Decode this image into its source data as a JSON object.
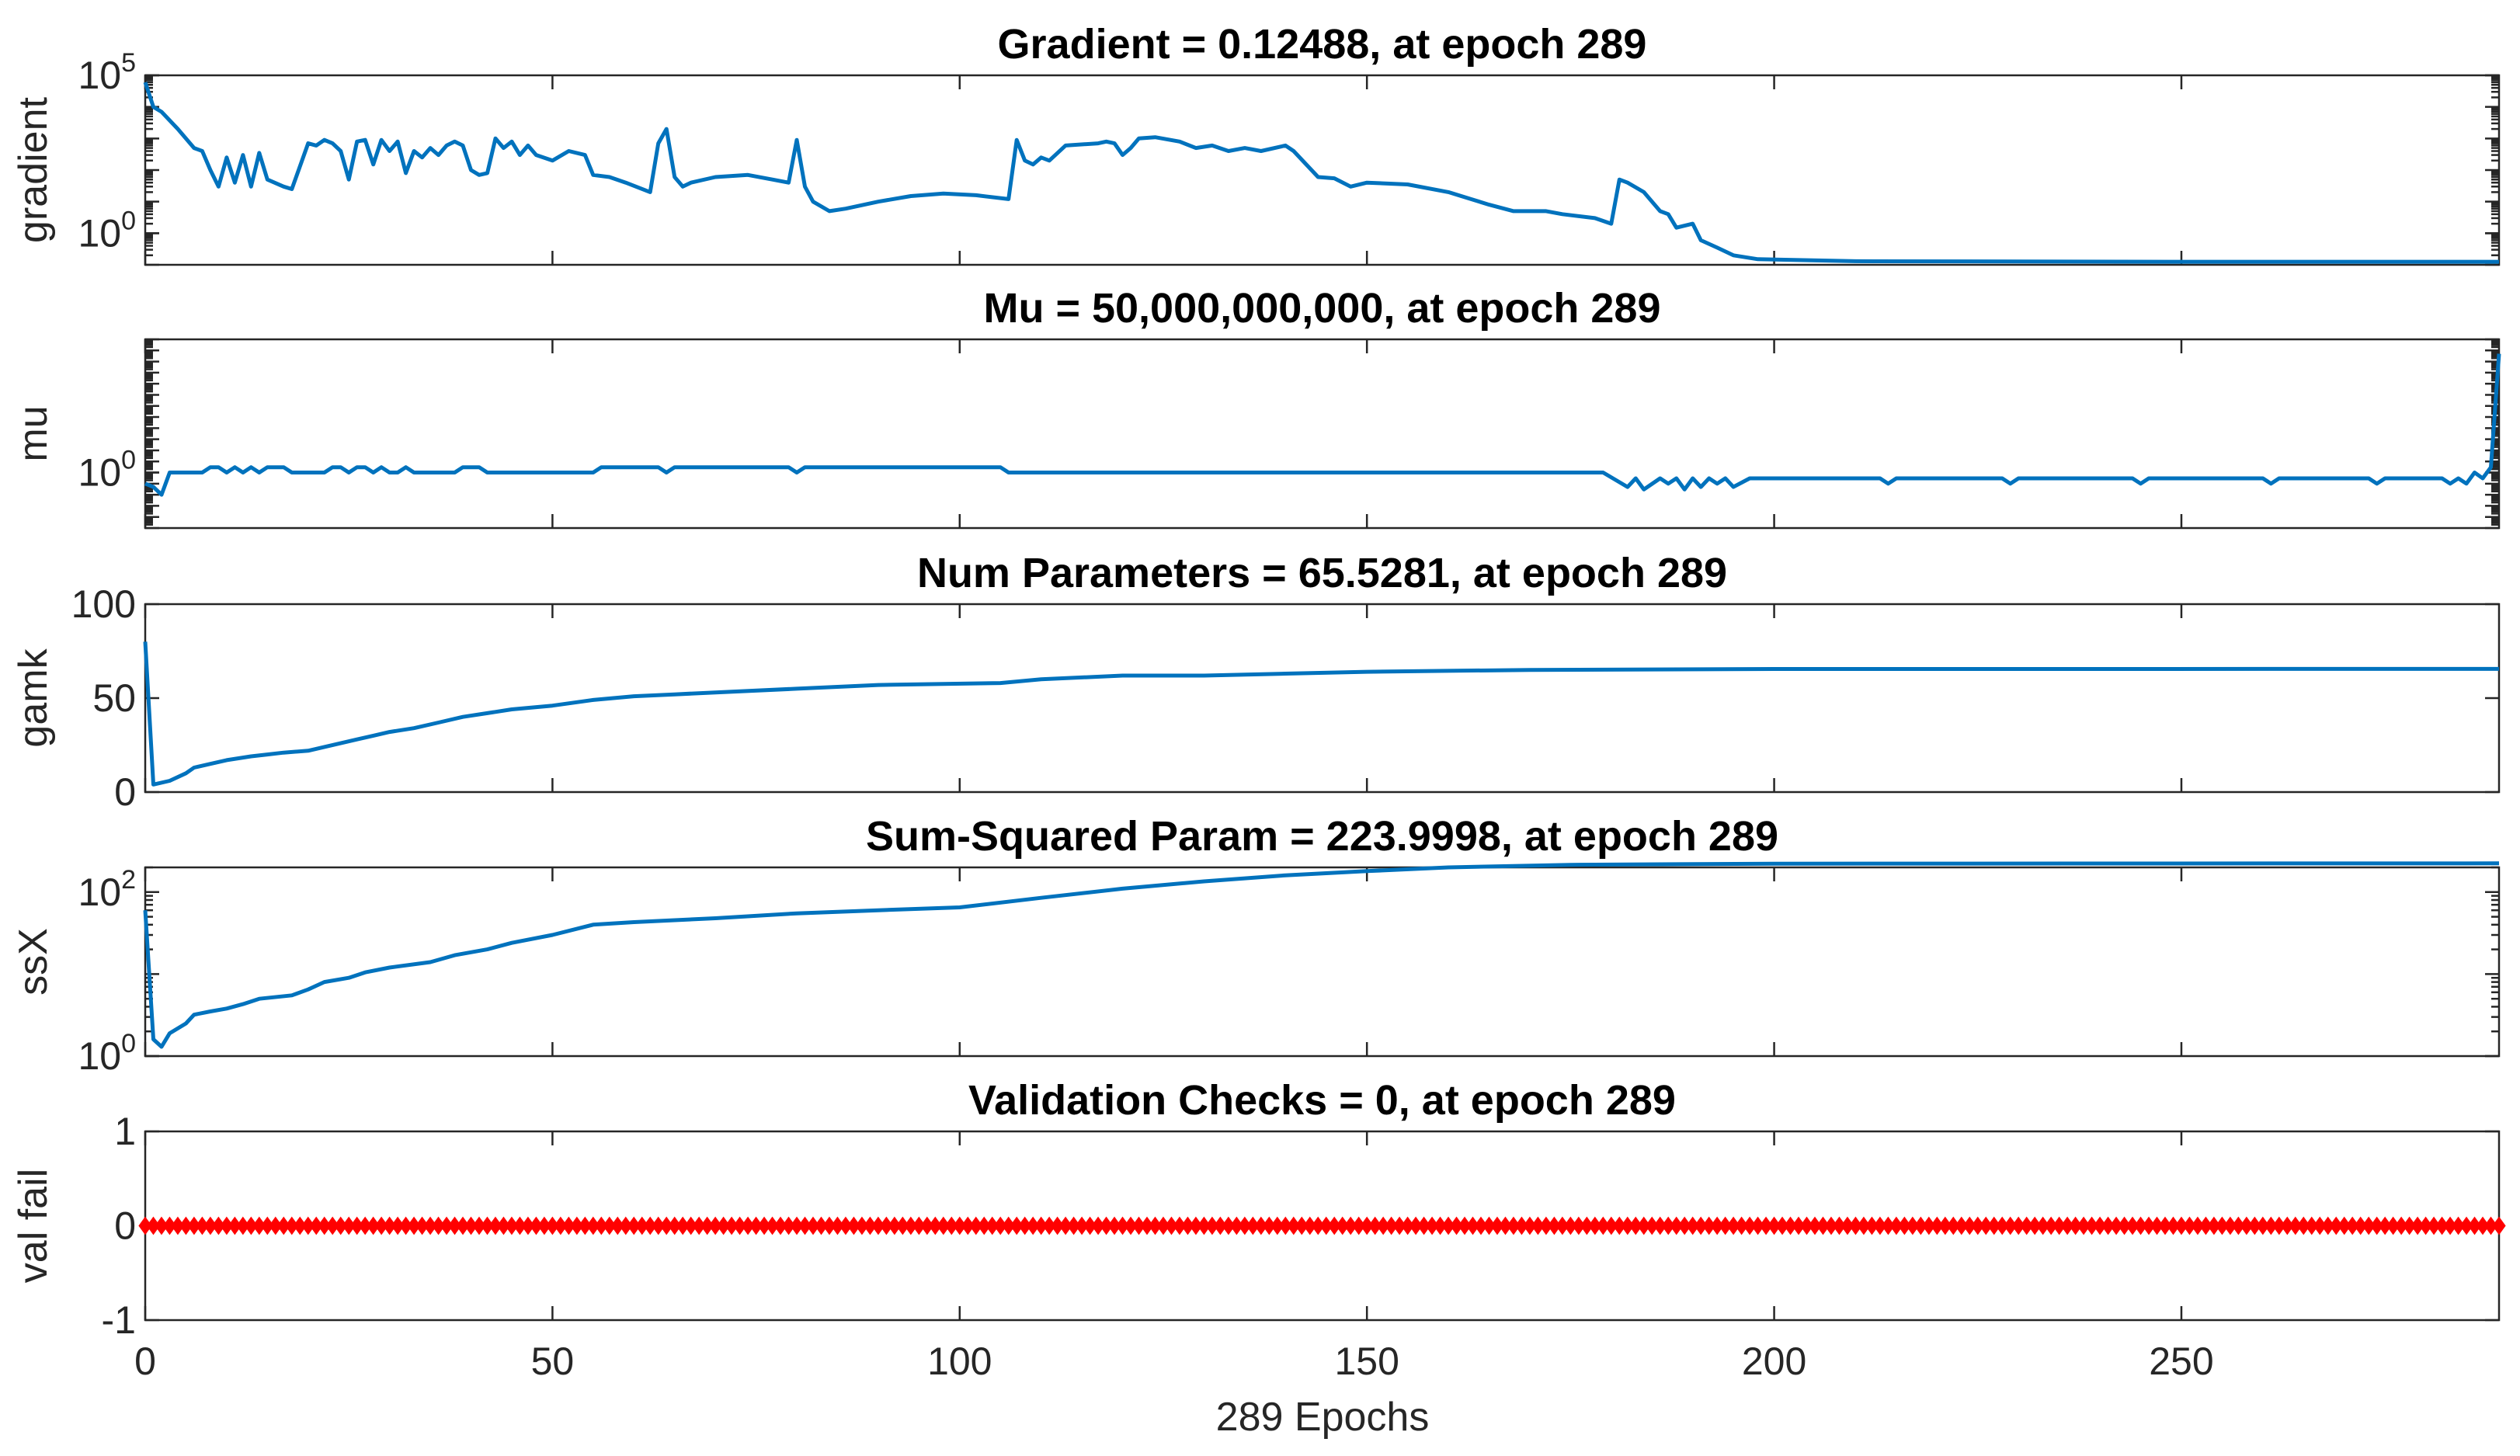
{
  "figure": {
    "xlabel": "289 Epochs",
    "xlim": [
      0,
      289
    ],
    "xticks": [
      0,
      50,
      100,
      150,
      200,
      250
    ]
  },
  "chart_data": [
    {
      "type": "line",
      "title": "Gradient = 0.12488, at epoch 289",
      "ylabel": "gradient",
      "yscale": "log",
      "ylim": [
        0.1,
        100000
      ],
      "yticks": [
        {
          "value": 1,
          "base": "10",
          "exp": "0"
        },
        {
          "value": 100000,
          "base": "10",
          "exp": "5"
        }
      ],
      "color": "#0072BD",
      "points": [
        [
          0,
          60000
        ],
        [
          1,
          10000
        ],
        [
          2,
          7000
        ],
        [
          4,
          2000
        ],
        [
          6,
          500
        ],
        [
          7,
          400
        ],
        [
          8,
          100
        ],
        [
          9,
          30
        ],
        [
          10,
          250
        ],
        [
          11,
          40
        ],
        [
          12,
          300
        ],
        [
          13,
          30
        ],
        [
          14,
          350
        ],
        [
          15,
          50
        ],
        [
          17,
          30
        ],
        [
          18,
          25
        ],
        [
          20,
          700
        ],
        [
          21,
          600
        ],
        [
          22,
          900
        ],
        [
          23,
          700
        ],
        [
          24,
          400
        ],
        [
          25,
          50
        ],
        [
          26,
          800
        ],
        [
          27,
          900
        ],
        [
          28,
          150
        ],
        [
          29,
          900
        ],
        [
          30,
          400
        ],
        [
          31,
          800
        ],
        [
          32,
          80
        ],
        [
          33,
          400
        ],
        [
          34,
          250
        ],
        [
          35,
          500
        ],
        [
          36,
          300
        ],
        [
          37,
          600
        ],
        [
          38,
          800
        ],
        [
          39,
          600
        ],
        [
          40,
          100
        ],
        [
          41,
          70
        ],
        [
          42,
          80
        ],
        [
          43,
          1000
        ],
        [
          44,
          500
        ],
        [
          45,
          800
        ],
        [
          46,
          300
        ],
        [
          47,
          600
        ],
        [
          48,
          300
        ],
        [
          50,
          200
        ],
        [
          52,
          400
        ],
        [
          54,
          300
        ],
        [
          55,
          70
        ],
        [
          57,
          60
        ],
        [
          59,
          40
        ],
        [
          62,
          20
        ],
        [
          63,
          700
        ],
        [
          64,
          2000
        ],
        [
          65,
          60
        ],
        [
          66,
          30
        ],
        [
          67,
          40
        ],
        [
          70,
          60
        ],
        [
          74,
          70
        ],
        [
          77,
          50
        ],
        [
          79,
          40
        ],
        [
          80,
          900
        ],
        [
          81,
          30
        ],
        [
          82,
          10
        ],
        [
          84,
          5
        ],
        [
          86,
          6
        ],
        [
          90,
          10
        ],
        [
          94,
          15
        ],
        [
          98,
          18
        ],
        [
          102,
          16
        ],
        [
          106,
          12
        ],
        [
          107,
          900
        ],
        [
          108,
          200
        ],
        [
          109,
          150
        ],
        [
          110,
          250
        ],
        [
          111,
          200
        ],
        [
          113,
          600
        ],
        [
          117,
          700
        ],
        [
          118,
          800
        ],
        [
          119,
          700
        ],
        [
          120,
          300
        ],
        [
          121,
          500
        ],
        [
          122,
          1000
        ],
        [
          124,
          1100
        ],
        [
          127,
          800
        ],
        [
          129,
          500
        ],
        [
          131,
          600
        ],
        [
          133,
          400
        ],
        [
          135,
          500
        ],
        [
          137,
          400
        ],
        [
          140,
          600
        ],
        [
          141,
          400
        ],
        [
          144,
          60
        ],
        [
          146,
          55
        ],
        [
          148,
          30
        ],
        [
          150,
          40
        ],
        [
          155,
          35
        ],
        [
          160,
          20
        ],
        [
          165,
          8
        ],
        [
          168,
          5
        ],
        [
          172,
          5
        ],
        [
          174,
          4
        ],
        [
          178,
          3
        ],
        [
          180,
          2
        ],
        [
          181,
          50
        ],
        [
          182,
          40
        ],
        [
          184,
          20
        ],
        [
          186,
          5
        ],
        [
          187,
          4
        ],
        [
          188,
          1.5
        ],
        [
          190,
          2
        ],
        [
          191,
          0.6
        ],
        [
          193,
          0.35
        ],
        [
          195,
          0.2
        ],
        [
          198,
          0.15
        ],
        [
          210,
          0.13
        ],
        [
          250,
          0.125
        ],
        [
          289,
          0.12488
        ]
      ]
    },
    {
      "type": "line",
      "title": "Mu = 50,000,000,000, at epoch 289",
      "ylabel": "mu",
      "yscale": "log",
      "ylim": [
        1e-05,
        1000000000000
      ],
      "yticks": [
        {
          "value": 1,
          "base": "10",
          "exp": "0"
        }
      ],
      "color": "#0072BD",
      "points": [
        [
          0,
          0.1
        ],
        [
          1,
          0.05
        ],
        [
          2,
          0.01
        ],
        [
          3,
          1
        ],
        [
          7,
          1
        ],
        [
          8,
          3
        ],
        [
          9,
          3
        ],
        [
          10,
          1
        ],
        [
          11,
          3
        ],
        [
          12,
          1
        ],
        [
          13,
          3
        ],
        [
          14,
          1
        ],
        [
          15,
          3
        ],
        [
          17,
          3
        ],
        [
          18,
          1
        ],
        [
          22,
          1
        ],
        [
          23,
          3
        ],
        [
          24,
          3
        ],
        [
          25,
          1
        ],
        [
          26,
          3
        ],
        [
          27,
          3
        ],
        [
          28,
          1
        ],
        [
          29,
          3
        ],
        [
          30,
          1
        ],
        [
          31,
          1
        ],
        [
          32,
          3
        ],
        [
          33,
          1
        ],
        [
          38,
          1
        ],
        [
          39,
          3
        ],
        [
          41,
          3
        ],
        [
          42,
          1
        ],
        [
          55,
          1
        ],
        [
          56,
          3
        ],
        [
          63,
          3
        ],
        [
          64,
          1
        ],
        [
          65,
          3
        ],
        [
          79,
          3
        ],
        [
          80,
          1
        ],
        [
          81,
          3
        ],
        [
          105,
          3
        ],
        [
          106,
          1
        ],
        [
          179,
          1
        ],
        [
          182,
          0.05
        ],
        [
          183,
          0.3
        ],
        [
          184,
          0.03
        ],
        [
          186,
          0.3
        ],
        [
          187,
          0.1
        ],
        [
          188,
          0.3
        ],
        [
          189,
          0.03
        ],
        [
          190,
          0.3
        ],
        [
          191,
          0.05
        ],
        [
          192,
          0.3
        ],
        [
          193,
          0.1
        ],
        [
          194,
          0.3
        ],
        [
          195,
          0.05
        ],
        [
          197,
          0.3
        ],
        [
          213,
          0.3
        ],
        [
          214,
          0.1
        ],
        [
          215,
          0.3
        ],
        [
          228,
          0.3
        ],
        [
          229,
          0.1
        ],
        [
          230,
          0.3
        ],
        [
          244,
          0.3
        ],
        [
          245,
          0.1
        ],
        [
          246,
          0.3
        ],
        [
          260,
          0.3
        ],
        [
          261,
          0.1
        ],
        [
          262,
          0.3
        ],
        [
          273,
          0.3
        ],
        [
          274,
          0.1
        ],
        [
          275,
          0.3
        ],
        [
          282,
          0.3
        ],
        [
          283,
          0.1
        ],
        [
          284,
          0.3
        ],
        [
          285,
          0.1
        ],
        [
          286,
          1
        ],
        [
          287,
          0.3
        ],
        [
          288,
          3
        ],
        [
          289,
          50000000000
        ]
      ]
    },
    {
      "type": "line",
      "title": "Num Parameters = 65.5281, at epoch 289",
      "ylabel": "gamk",
      "yscale": "linear",
      "ylim": [
        0,
        100
      ],
      "yticks": [
        {
          "value": 0,
          "label": "0"
        },
        {
          "value": 50,
          "label": "50"
        },
        {
          "value": 100,
          "label": "100"
        }
      ],
      "color": "#0072BD",
      "points": [
        [
          0,
          80
        ],
        [
          1,
          4
        ],
        [
          3,
          6
        ],
        [
          5,
          10
        ],
        [
          6,
          13
        ],
        [
          8,
          15
        ],
        [
          10,
          17
        ],
        [
          13,
          19
        ],
        [
          15,
          20
        ],
        [
          17,
          21
        ],
        [
          20,
          22
        ],
        [
          22,
          24
        ],
        [
          24,
          26
        ],
        [
          26,
          28
        ],
        [
          28,
          30
        ],
        [
          30,
          32
        ],
        [
          33,
          34
        ],
        [
          36,
          37
        ],
        [
          39,
          40
        ],
        [
          42,
          42
        ],
        [
          45,
          44
        ],
        [
          50,
          46
        ],
        [
          55,
          49
        ],
        [
          60,
          51
        ],
        [
          65,
          52
        ],
        [
          70,
          53
        ],
        [
          80,
          55
        ],
        [
          90,
          57
        ],
        [
          105,
          58
        ],
        [
          110,
          60
        ],
        [
          120,
          62
        ],
        [
          130,
          62
        ],
        [
          140,
          63
        ],
        [
          150,
          64
        ],
        [
          170,
          65
        ],
        [
          200,
          65.5
        ],
        [
          289,
          65.5281
        ]
      ]
    },
    {
      "type": "line",
      "title": "Sum-Squared Param = 223.9998, at epoch 289",
      "ylabel": "ssX",
      "yscale": "log",
      "ylim": [
        1,
        200
      ],
      "yticks": [
        {
          "value": 1,
          "base": "10",
          "exp": "0"
        },
        {
          "value": 100,
          "base": "10",
          "exp": "2"
        }
      ],
      "color": "#0072BD",
      "points": [
        [
          0,
          60
        ],
        [
          1,
          1.6
        ],
        [
          2,
          1.3
        ],
        [
          3,
          1.9
        ],
        [
          5,
          2.5
        ],
        [
          6,
          3.2
        ],
        [
          8,
          3.5
        ],
        [
          10,
          3.8
        ],
        [
          12,
          4.3
        ],
        [
          14,
          5
        ],
        [
          18,
          5.5
        ],
        [
          20,
          6.5
        ],
        [
          22,
          8
        ],
        [
          25,
          9
        ],
        [
          27,
          10.5
        ],
        [
          30,
          12
        ],
        [
          35,
          14
        ],
        [
          38,
          17
        ],
        [
          42,
          20
        ],
        [
          45,
          24
        ],
        [
          50,
          30
        ],
        [
          55,
          40
        ],
        [
          60,
          43
        ],
        [
          70,
          48
        ],
        [
          80,
          55
        ],
        [
          90,
          60
        ],
        [
          100,
          65
        ],
        [
          110,
          85
        ],
        [
          120,
          110
        ],
        [
          130,
          135
        ],
        [
          140,
          160
        ],
        [
          150,
          180
        ],
        [
          160,
          200
        ],
        [
          175,
          215
        ],
        [
          200,
          222
        ],
        [
          289,
          223.9998
        ]
      ]
    },
    {
      "type": "line",
      "title": "Validation Checks = 0, at epoch 289",
      "ylabel": "val fail",
      "yscale": "linear",
      "ylim": [
        -1,
        1
      ],
      "yticks": [
        {
          "value": -1,
          "label": "-1"
        },
        {
          "value": 0,
          "label": "0"
        },
        {
          "value": 1,
          "label": "1"
        }
      ],
      "color": "#FF0000",
      "marker": "diamond",
      "series": {
        "name": "val fail",
        "x_start": 0,
        "x_end": 289,
        "constant_value": 0
      }
    }
  ]
}
